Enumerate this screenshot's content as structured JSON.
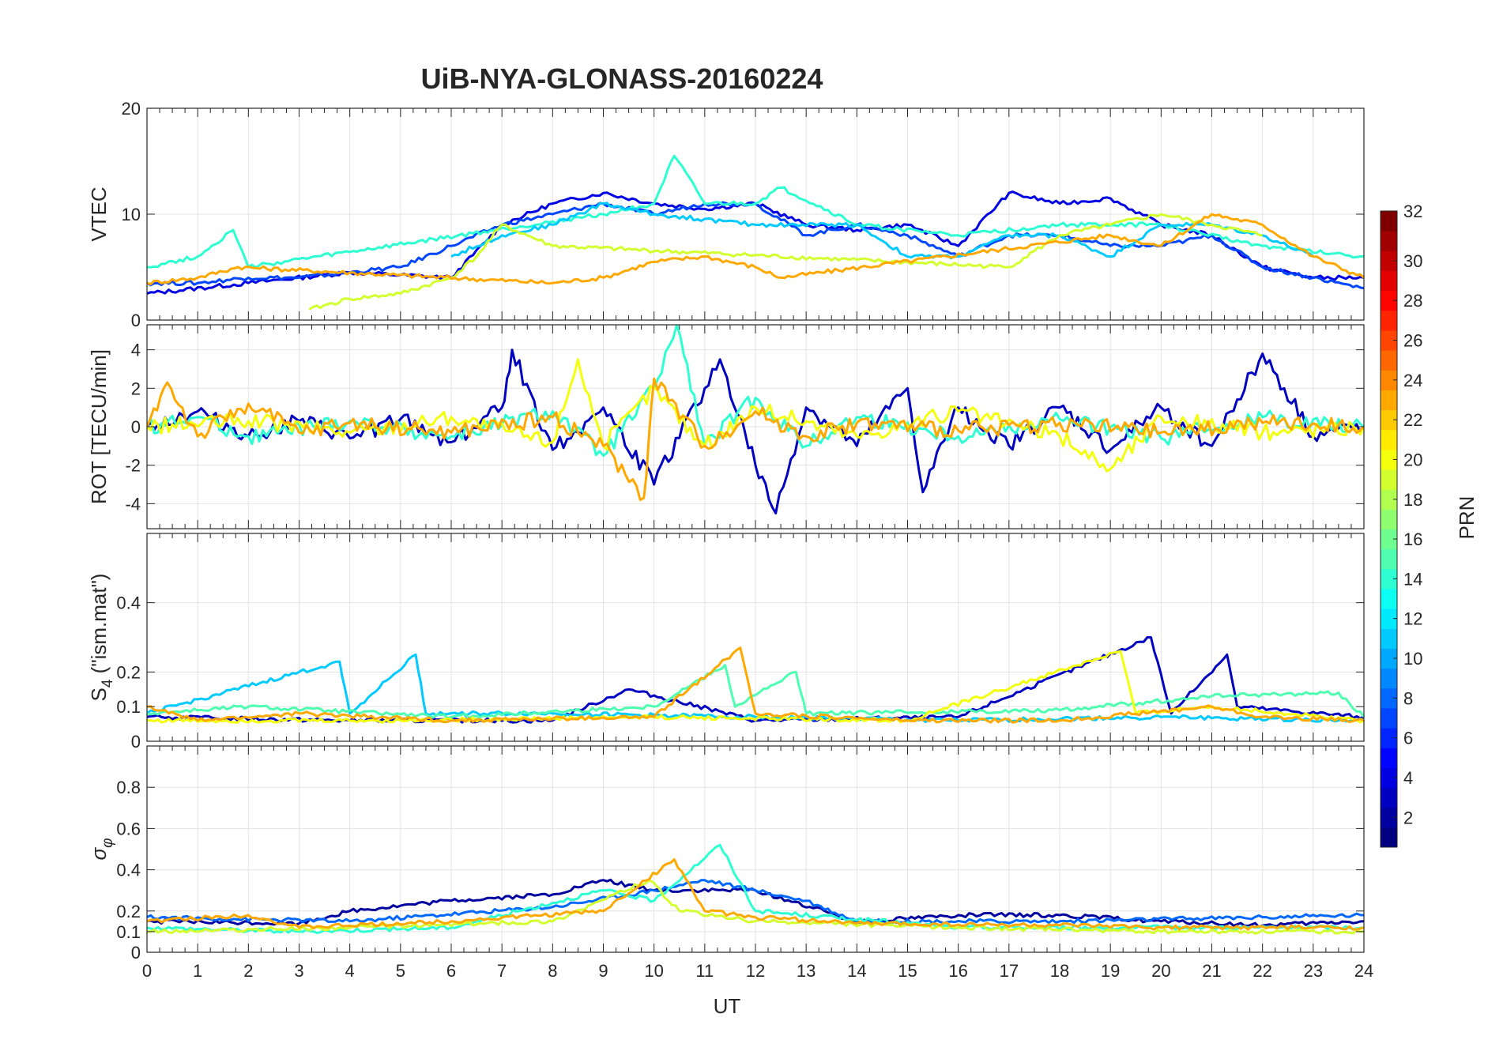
{
  "chart_data": {
    "title": "UiB-NYA-GLONASS-20160224",
    "xlabel": "UT",
    "x_ticks": [
      0,
      1,
      2,
      3,
      4,
      5,
      6,
      7,
      8,
      9,
      10,
      11,
      12,
      13,
      14,
      15,
      16,
      17,
      18,
      19,
      20,
      21,
      22,
      23,
      24
    ],
    "xlim": [
      0,
      24
    ],
    "grid": true,
    "colorbar": {
      "label": "PRN",
      "range": [
        1,
        32
      ],
      "ticks": [
        2,
        4,
        6,
        8,
        10,
        12,
        14,
        16,
        18,
        20,
        22,
        24,
        26,
        28,
        30,
        32
      ],
      "colormap": "jet"
    },
    "panels": [
      {
        "type": "line",
        "ylabel": "VTEC",
        "ylim": [
          0,
          20
        ],
        "y_ticks": [
          0,
          10,
          20
        ],
        "series": [
          {
            "prn": 4,
            "x": [
              0,
              2,
              4,
              6,
              7,
              8,
              9,
              10,
              11,
              12,
              13,
              14,
              15,
              16,
              17,
              18,
              19,
              20,
              21,
              22,
              23,
              24
            ],
            "y": [
              2.5,
              3.5,
              4.5,
              4,
              9,
              11,
              12,
              11,
              10.5,
              11,
              9,
              8.5,
              9,
              7,
              12,
              11,
              11.5,
              9,
              8,
              5,
              4,
              4
            ]
          },
          {
            "prn": 7,
            "x": [
              0,
              1,
              2,
              3,
              4,
              5,
              6,
              7,
              8,
              9,
              10,
              11,
              12,
              13,
              14,
              15,
              16,
              17,
              18,
              19,
              20,
              21,
              22,
              23,
              24
            ],
            "y": [
              3.5,
              3.5,
              4,
              4,
              4.5,
              5,
              7,
              9,
              10,
              11,
              10,
              11,
              11,
              8,
              9,
              8,
              6,
              8,
              8,
              7,
              7,
              8,
              5,
              4,
              3
            ]
          },
          {
            "prn": 14,
            "x": [
              0,
              1,
              1.7,
              2,
              9,
              10,
              10.4,
              11,
              12,
              12.5,
              14,
              16,
              18,
              20,
              22,
              24
            ],
            "y": [
              5,
              6,
              8.5,
              5,
              10,
              11,
              15.5,
              11,
              11,
              12.5,
              9,
              8,
              9,
              9,
              7,
              6
            ]
          },
          {
            "prn": 11,
            "x": [
              6,
              7,
              8,
              9,
              10,
              12,
              14,
              15,
              16,
              17,
              18,
              19,
              20,
              21,
              22,
              23
            ],
            "y": [
              6,
              8,
              9,
              11,
              10,
              9,
              9,
              6,
              6,
              8,
              8,
              6,
              9,
              9,
              8,
              6
            ]
          },
          {
            "prn": 19,
            "x": [
              3.2,
              4,
              5,
              6,
              6.5,
              7,
              8,
              17,
              18,
              19,
              20,
              21,
              22
            ],
            "y": [
              1,
              2,
              2.5,
              4,
              6,
              9,
              7,
              5,
              8,
              9,
              10,
              9,
              8
            ]
          },
          {
            "prn": 23,
            "x": [
              0,
              1,
              1.8,
              8,
              9,
              10,
              11,
              12,
              12.5,
              19,
              20,
              21,
              22,
              23,
              24
            ],
            "y": [
              3.5,
              4,
              5,
              3.5,
              4,
              5.5,
              6,
              5,
              4,
              8,
              7,
              10,
              9,
              6,
              4
            ]
          }
        ]
      },
      {
        "type": "line",
        "ylabel": "ROT [TECU/min]",
        "ylim": [
          -5.3,
          5.3
        ],
        "y_ticks": [
          -4,
          -2,
          0,
          2,
          4
        ],
        "series": [
          {
            "prn": 3,
            "x": [
              0,
              1,
              2,
              3,
              4,
              5,
              6,
              7,
              7.2,
              8,
              9,
              10,
              11,
              11.3,
              12,
              12.4,
              13,
              14,
              15,
              15.3,
              16,
              17,
              18,
              19,
              20,
              21,
              22,
              23,
              24
            ],
            "y": [
              0,
              0.8,
              -0.5,
              0.3,
              -0.6,
              0.4,
              -0.8,
              1,
              4,
              -1.2,
              1,
              -3,
              2,
              3.5,
              -2,
              -4.5,
              1,
              -1,
              2,
              -3.4,
              1,
              -1,
              1,
              -1.2,
              1,
              -1,
              3.8,
              -0.5,
              0
            ]
          },
          {
            "prn": 14,
            "x": [
              0,
              1,
              2,
              4,
              6,
              8,
              9,
              10,
              10.45,
              11,
              12,
              13,
              14,
              16,
              18,
              20,
              22,
              24
            ],
            "y": [
              0,
              0.5,
              -0.5,
              0.3,
              -0.5,
              0.8,
              -1.5,
              2,
              5.3,
              -1,
              1.5,
              -1,
              0.5,
              -0.5,
              0.4,
              -0.6,
              0.5,
              0
            ]
          },
          {
            "prn": 20,
            "x": [
              0,
              2,
              4,
              6,
              8,
              8.5,
              9,
              10,
              11,
              12,
              14,
              16,
              18,
              19,
              20,
              22,
              24
            ],
            "y": [
              0,
              0.3,
              -0.3,
              0.5,
              -0.8,
              3.5,
              -1,
              2,
              -1,
              1,
              -0.5,
              0.8,
              -0.5,
              -2.2,
              0.5,
              -0.3,
              0
            ]
          },
          {
            "prn": 23,
            "x": [
              0,
              0.4,
              1,
              2,
              3,
              4,
              6,
              8,
              9,
              9.8,
              10,
              11,
              12,
              13,
              14,
              16,
              18,
              20,
              22,
              24
            ],
            "y": [
              0,
              2.3,
              -0.5,
              1.2,
              -0.3,
              0.2,
              -0.3,
              0.5,
              -1,
              -3.7,
              2.5,
              -1,
              0.8,
              -0.5,
              0.2,
              -0.2,
              0.2,
              -0.3,
              0.2,
              0
            ]
          }
        ]
      },
      {
        "type": "line",
        "ylabel": "S4 (\"ism.mat\")",
        "ylim": [
          0,
          0.6
        ],
        "y_ticks": [
          0,
          0.1,
          0.2,
          0.4
        ],
        "series": [
          {
            "prn": 3,
            "x": [
              0,
              4,
              8,
              9.5,
              12,
              16,
              19.8,
              20.2,
              21.3,
              21.5,
              24
            ],
            "y": [
              0.07,
              0.06,
              0.06,
              0.15,
              0.06,
              0.07,
              0.3,
              0.08,
              0.25,
              0.1,
              0.07
            ]
          },
          {
            "prn": 11,
            "x": [
              0,
              3.8,
              4,
              5.3,
              5.5,
              8,
              12,
              16,
              20,
              24
            ],
            "y": [
              0.08,
              0.23,
              0.08,
              0.25,
              0.08,
              0.08,
              0.07,
              0.06,
              0.07,
              0.06
            ]
          },
          {
            "prn": 15,
            "x": [
              0,
              2,
              6,
              10,
              11.4,
              11.6,
              12.8,
              13,
              18,
              21,
              23.5,
              24
            ],
            "y": [
              0.08,
              0.1,
              0.07,
              0.1,
              0.22,
              0.1,
              0.2,
              0.08,
              0.09,
              0.13,
              0.14,
              0.07
            ]
          },
          {
            "prn": 20,
            "x": [
              0,
              5,
              10,
              15,
              19.2,
              19.5,
              21,
              24
            ],
            "y": [
              0.06,
              0.06,
              0.07,
              0.06,
              0.26,
              0.08,
              0.1,
              0.06
            ]
          },
          {
            "prn": 23,
            "x": [
              0,
              1,
              3,
              6,
              10,
              11.7,
              12,
              15,
              18,
              21,
              22,
              24
            ],
            "y": [
              0.1,
              0.06,
              0.08,
              0.06,
              0.07,
              0.27,
              0.08,
              0.06,
              0.06,
              0.1,
              0.07,
              0.06
            ]
          }
        ]
      },
      {
        "type": "line",
        "ylabel": "σ_φ",
        "ylim": [
          0,
          1
        ],
        "y_ticks": [
          0,
          0.1,
          0.2,
          0.4,
          0.6,
          0.8
        ],
        "series": [
          {
            "prn": 2,
            "x": [
              0,
              3,
              4,
              6,
              8,
              9,
              10,
              12,
              14,
              16,
              18,
              20,
              22,
              24
            ],
            "y": [
              0.15,
              0.14,
              0.2,
              0.25,
              0.28,
              0.35,
              0.3,
              0.3,
              0.15,
              0.18,
              0.18,
              0.15,
              0.13,
              0.15
            ]
          },
          {
            "prn": 8,
            "x": [
              0,
              4,
              8,
              10,
              11,
              12,
              13,
              14,
              18,
              22,
              24
            ],
            "y": [
              0.17,
              0.15,
              0.22,
              0.3,
              0.35,
              0.3,
              0.25,
              0.15,
              0.15,
              0.17,
              0.18
            ]
          },
          {
            "prn": 14,
            "x": [
              0,
              3,
              6,
              9,
              10,
              11.3,
              12,
              16,
              20,
              24
            ],
            "y": [
              0.12,
              0.1,
              0.12,
              0.3,
              0.25,
              0.52,
              0.2,
              0.12,
              0.12,
              0.12
            ]
          },
          {
            "prn": 19,
            "x": [
              0,
              4,
              8,
              9.9,
              10.5,
              12,
              16,
              20,
              24
            ],
            "y": [
              0.1,
              0.12,
              0.15,
              0.35,
              0.2,
              0.15,
              0.12,
              0.1,
              0.1
            ]
          },
          {
            "prn": 23,
            "x": [
              0,
              2,
              3,
              6,
              9,
              10.4,
              11,
              12,
              13.5,
              14,
              18,
              20,
              24
            ],
            "y": [
              0.15,
              0.18,
              0.12,
              0.15,
              0.2,
              0.45,
              0.2,
              0.17,
              0.15,
              0.14,
              0.13,
              0.12,
              0.12
            ]
          }
        ]
      }
    ]
  }
}
